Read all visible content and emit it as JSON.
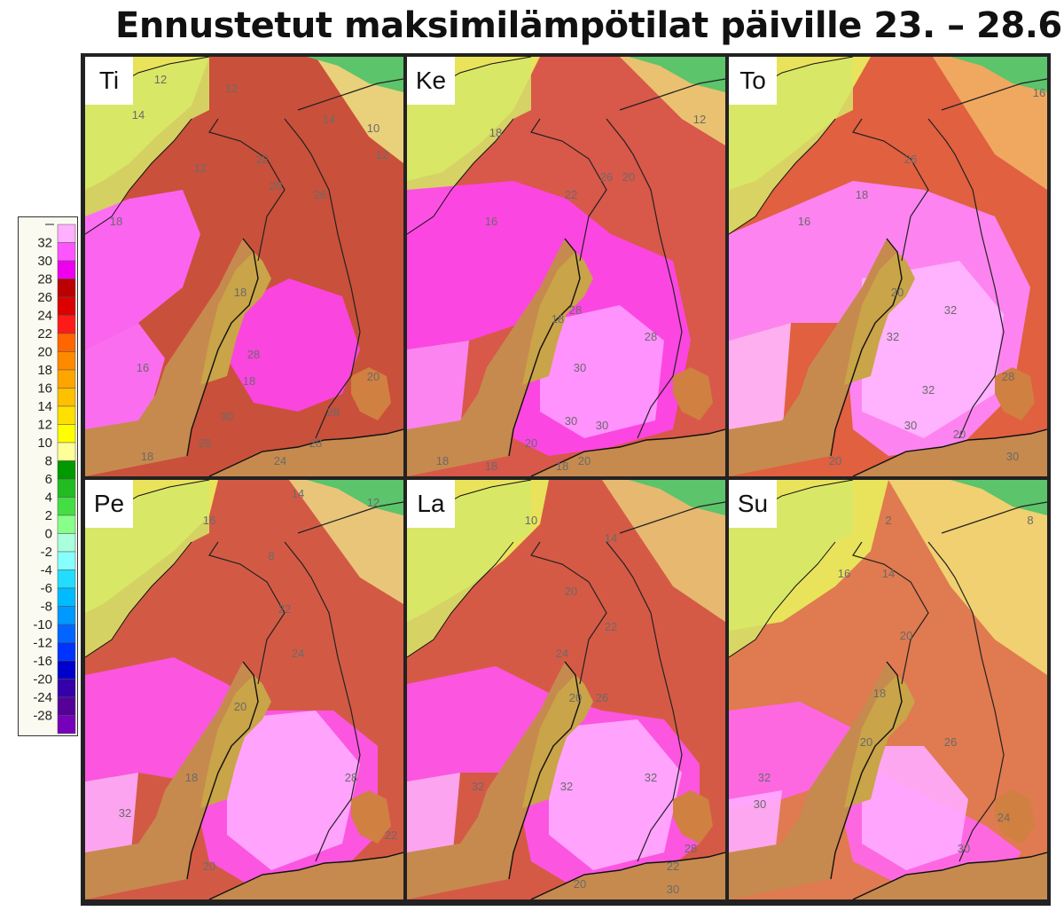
{
  "title": "Ennustetut maksimilämpötilat päiville 23. – 28.6.",
  "legend": {
    "labels": [
      "32",
      "30",
      "28",
      "26",
      "24",
      "22",
      "20",
      "18",
      "16",
      "14",
      "12",
      "10",
      "8",
      "6",
      "4",
      "2",
      "0",
      "-2",
      "-4",
      "-6",
      "-8",
      "-10",
      "-12",
      "-16",
      "-20",
      "-24",
      "-28"
    ],
    "colors": [
      "#ffb0ff",
      "#ff55ff",
      "#ee00ee",
      "#bb0000",
      "#dd0000",
      "#ff1a1a",
      "#ff6600",
      "#ff8a00",
      "#ffa500",
      "#ffc000",
      "#ffe000",
      "#ffff00",
      "#ffff99",
      "#009900",
      "#22bb22",
      "#44dd44",
      "#88ff88",
      "#aaffdd",
      "#88ffff",
      "#22ddff",
      "#00bbff",
      "#0099ff",
      "#0066ff",
      "#0033ff",
      "#0000cc",
      "#3300aa",
      "#550099",
      "#7700bb"
    ]
  },
  "panels": [
    {
      "day": "Ti",
      "contours": [
        "12",
        "14",
        "12",
        "18",
        "22",
        "20",
        "14",
        "10",
        "12",
        "18",
        "26",
        "28",
        "18",
        "16",
        "30",
        "26",
        "28",
        "28",
        "20",
        "18",
        "24",
        "12"
      ]
    },
    {
      "day": "Ke",
      "contours": [
        "18",
        "22",
        "20",
        "12",
        "16",
        "26",
        "28",
        "18",
        "30",
        "28",
        "30",
        "30",
        "20",
        "18",
        "18",
        "20",
        "18"
      ]
    },
    {
      "day": "To",
      "contours": [
        "16",
        "26",
        "16",
        "18",
        "20",
        "32",
        "32",
        "32",
        "28",
        "30",
        "20",
        "20",
        "30"
      ]
    },
    {
      "day": "Pe",
      "contours": [
        "14",
        "12",
        "16",
        "8",
        "22",
        "24",
        "20",
        "18",
        "32",
        "28",
        "20",
        "22"
      ]
    },
    {
      "day": "La",
      "contours": [
        "10",
        "14",
        "20",
        "22",
        "24",
        "20",
        "26",
        "32",
        "32",
        "32",
        "28",
        "20",
        "22",
        "30"
      ]
    },
    {
      "day": "Su",
      "contours": [
        "2",
        "8",
        "16",
        "14",
        "20",
        "18",
        "20",
        "26",
        "32",
        "30",
        "24",
        "30"
      ]
    }
  ]
}
